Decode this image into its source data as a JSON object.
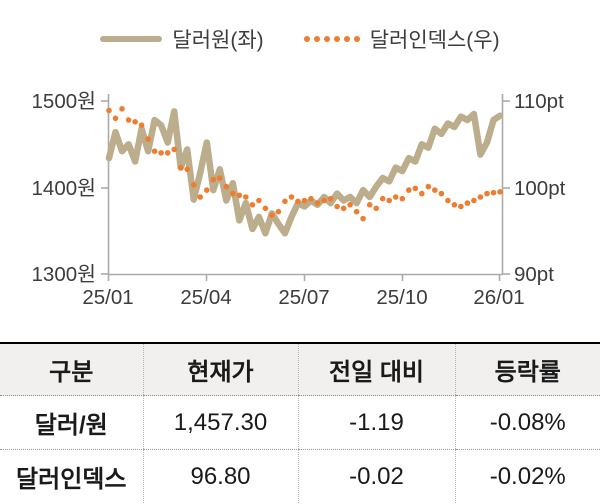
{
  "legend": {
    "series1_label": "달러원(좌)",
    "series2_label": "달러인덱스(우)"
  },
  "colors": {
    "dollar_won_line": "#BCAE8C",
    "dollar_index_dots": "#ED7D31",
    "axis": "#ABABAB",
    "axis_text": "#3d3d3d",
    "table_header_bg": "#F1F0EE",
    "table_top_border": "#000000"
  },
  "chart_data": {
    "type": "line",
    "title": "",
    "xlabel": "",
    "ylabel_left": "원",
    "ylabel_right": "pt",
    "grid": false,
    "legend_position": "top-center",
    "x_ticks": [
      "25/01",
      "25/04",
      "25/07",
      "25/10",
      "26/01"
    ],
    "left_axis": {
      "labels": [
        "1500원",
        "1400원",
        "1300원"
      ],
      "max": 1500,
      "min": 1300
    },
    "right_axis": {
      "labels": [
        "110pt",
        "100pt",
        "90pt"
      ],
      "max": 110,
      "min": 90
    },
    "series": [
      {
        "name": "달러원(좌)",
        "axis": "left",
        "style": "solid",
        "color": "#BCAE8C",
        "values": [
          1434,
          1464,
          1442,
          1450,
          1430,
          1468,
          1442,
          1478,
          1472,
          1452,
          1488,
          1423,
          1444,
          1386,
          1417,
          1452,
          1397,
          1421,
          1385,
          1405,
          1362,
          1382,
          1352,
          1366,
          1347,
          1370,
          1358,
          1347,
          1366,
          1382,
          1378,
          1385,
          1380,
          1389,
          1382,
          1393,
          1385,
          1389,
          1382,
          1397,
          1389,
          1401,
          1411,
          1407,
          1423,
          1419,
          1434,
          1430,
          1450,
          1446,
          1468,
          1462,
          1474,
          1470,
          1482,
          1478,
          1485,
          1438,
          1452,
          1478,
          1483
        ]
      },
      {
        "name": "달러인덱스(우)",
        "axis": "right",
        "style": "dotted",
        "color": "#ED7D31",
        "values": [
          108.9,
          108.0,
          109.1,
          107.8,
          107.6,
          107.2,
          105.6,
          104.2,
          104.0,
          104.0,
          104.4,
          102.3,
          102.1,
          100.3,
          98.9,
          99.7,
          100.9,
          101.1,
          100.1,
          99.3,
          99.1,
          98.9,
          98.0,
          98.5,
          97.6,
          96.8,
          97.2,
          98.4,
          98.9,
          98.4,
          98.5,
          98.7,
          98.2,
          98.5,
          98.7,
          97.8,
          97.6,
          98.0,
          97.2,
          96.4,
          98.0,
          97.6,
          98.7,
          98.5,
          98.9,
          98.7,
          99.7,
          99.9,
          99.3,
          100.1,
          99.7,
          99.3,
          98.5,
          98.0,
          97.8,
          98.2,
          98.5,
          98.9,
          99.3,
          99.4,
          99.5
        ]
      }
    ]
  },
  "table": {
    "headers": [
      "구분",
      "현재가",
      "전일 대비",
      "등락률"
    ],
    "rows": [
      {
        "label": "달러/원",
        "price": "1,457.30",
        "change": "-1.19",
        "pct": "-0.08%"
      },
      {
        "label": "달러인덱스",
        "price": "96.80",
        "change": "-0.02",
        "pct": "-0.02%"
      }
    ]
  }
}
